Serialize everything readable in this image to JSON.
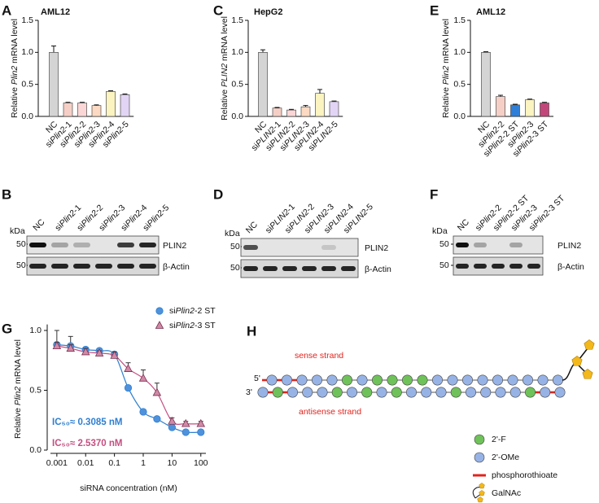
{
  "chart_data": [
    {
      "type": "bar",
      "panel": "A",
      "title": "AML12",
      "y_label": "Relative Plin2 mRNA level",
      "categories": [
        "NC",
        "siPlin2-1",
        "siPlin2-2",
        "siPlin2-3",
        "siPlin2-4",
        "siPlin2-5"
      ],
      "values": [
        1.0,
        0.21,
        0.21,
        0.17,
        0.39,
        0.34
      ],
      "errors": [
        0.1,
        0.01,
        0.01,
        0.01,
        0.01,
        0.01
      ],
      "colors": [
        "#d4d4d4",
        "#f5cfc6",
        "#fbd6d6",
        "#fcd9c2",
        "#fbf3c0",
        "#e2d4f4"
      ],
      "ylim": [
        0,
        1.5
      ],
      "yticks": [
        {
          "value": 0,
          "label": "0.0"
        },
        0.5,
        {
          "value": 1,
          "label": "1.0"
        },
        1.5
      ]
    },
    {
      "type": "bar",
      "panel": "C",
      "title": "HepG2",
      "y_label": "Relative PLIN2 mRNA level",
      "categories": [
        "NC",
        "siPLIN2-1",
        "siPLIN2-2",
        "siPLIN2-3",
        "siPLIN2-4",
        "siPLIN2-5"
      ],
      "values": [
        1.0,
        0.13,
        0.1,
        0.15,
        0.36,
        0.23
      ],
      "errors": [
        0.04,
        0.01,
        0.01,
        0.02,
        0.06,
        0.01
      ],
      "colors": [
        "#d4d4d4",
        "#f5cfc6",
        "#fbd6d6",
        "#fcd9c2",
        "#fbf3c0",
        "#e2d4f4"
      ],
      "ylim": [
        0,
        1.5
      ],
      "yticks": [
        {
          "value": 0,
          "label": "0.0"
        },
        0.5,
        {
          "value": 1,
          "label": "1.0"
        },
        1.5
      ]
    },
    {
      "type": "bar",
      "panel": "E",
      "title": "AML12",
      "y_label": "Relative Plin2 mRNA level",
      "categories": [
        "NC",
        "siPlin2-2",
        "siPlin2-2 ST",
        "siPlin2-3",
        "siPlin2-3 ST"
      ],
      "values": [
        1.0,
        0.31,
        0.18,
        0.26,
        0.21
      ],
      "errors": [
        0.01,
        0.02,
        0.01,
        0.01,
        0.01
      ],
      "colors": [
        "#d4d4d4",
        "#f5cfc6",
        "#2f7fd8",
        "#fbf3c0",
        "#c2467a"
      ],
      "ylim": [
        0,
        1.5
      ],
      "yticks": [
        {
          "value": 0,
          "label": "0.0"
        },
        0.5,
        {
          "value": 1,
          "label": "1.0"
        },
        1.5
      ]
    },
    {
      "type": "scatter",
      "panel": "G",
      "x_label": "siRNA concentration (nM)",
      "y_label": "Relative Plin2 mRNA level",
      "xscale": "log",
      "x": [
        0.001,
        0.003,
        0.01,
        0.03,
        0.1,
        0.3,
        1,
        3,
        10,
        30,
        100
      ],
      "xlim": [
        0.0006,
        150
      ],
      "xticks": [
        0.001,
        0.01,
        0.1,
        1,
        10,
        100
      ],
      "ylim": [
        0,
        1.05
      ],
      "yticks": [
        {
          "value": 0,
          "label": "0.0"
        },
        0.5,
        {
          "value": 1,
          "label": "1.0"
        }
      ],
      "series": [
        {
          "name": "siPlin2-2 ST",
          "marker": "circle",
          "color": "#2d7fd0",
          "fill": "#4f92dc",
          "values": [
            0.88,
            0.87,
            0.84,
            0.83,
            0.8,
            0.52,
            0.32,
            0.26,
            0.19,
            0.15,
            0.15
          ],
          "errors": [
            0.12,
            0.08,
            0.02,
            0.02,
            0.02,
            0.02,
            0.02,
            0.02,
            0.02,
            0.02,
            0.02
          ]
        },
        {
          "name": "siPlin2-3 ST",
          "marker": "triangle",
          "color": "#c44f80",
          "fill": "#d08aa6",
          "values": [
            0.87,
            0.85,
            0.82,
            0.81,
            0.79,
            0.68,
            0.6,
            0.48,
            0.24,
            0.22,
            0.22
          ],
          "errors": [
            0.03,
            0.03,
            0.03,
            0.02,
            0.03,
            0.05,
            0.07,
            0.08,
            0.03,
            0.02,
            0.02
          ]
        }
      ],
      "annotations": [
        {
          "text": "IC₅₀≈ 0.3085 nM",
          "color": "#2d7fd0"
        },
        {
          "text": "IC₅₀≈ 2.5370 nM",
          "color": "#c44f80"
        }
      ]
    }
  ],
  "blots": [
    {
      "panel": "B",
      "lanes": [
        "NC",
        "siPlin2-1",
        "siPlin2-2",
        "siPlin2-3",
        "siPlin2-4",
        "siPlin2-5"
      ],
      "kda": "kDa",
      "markers": [
        50,
        50
      ],
      "proteins": [
        "PLIN2",
        "β-Actin"
      ]
    },
    {
      "panel": "D",
      "lanes": [
        "NC",
        "siPLIN2-1",
        "siPLIN2-2",
        "siPLIN2-3",
        "siPLIN2-4",
        "siPLIN2-5"
      ],
      "kda": "kDa",
      "markers": [
        50,
        50
      ],
      "proteins": [
        "PLIN2",
        "β-Actin"
      ]
    },
    {
      "panel": "F",
      "lanes": [
        "NC",
        "siPlin2-2",
        "siPlin2-2 ST",
        "siPlin2-3",
        "siPlin2-3 ST"
      ],
      "kda": "kDa",
      "markers": [
        50,
        50
      ],
      "proteins": [
        "PLIN2",
        "β-Actin"
      ]
    }
  ],
  "diagram": {
    "panel": "H",
    "sense": "sense strand",
    "antisense": "antisense strand",
    "five_prime": "5'",
    "three_prime": "3'",
    "legend": [
      "2'-F",
      "2'-OMe",
      "phosphorothioate",
      "GalNAc"
    ]
  }
}
